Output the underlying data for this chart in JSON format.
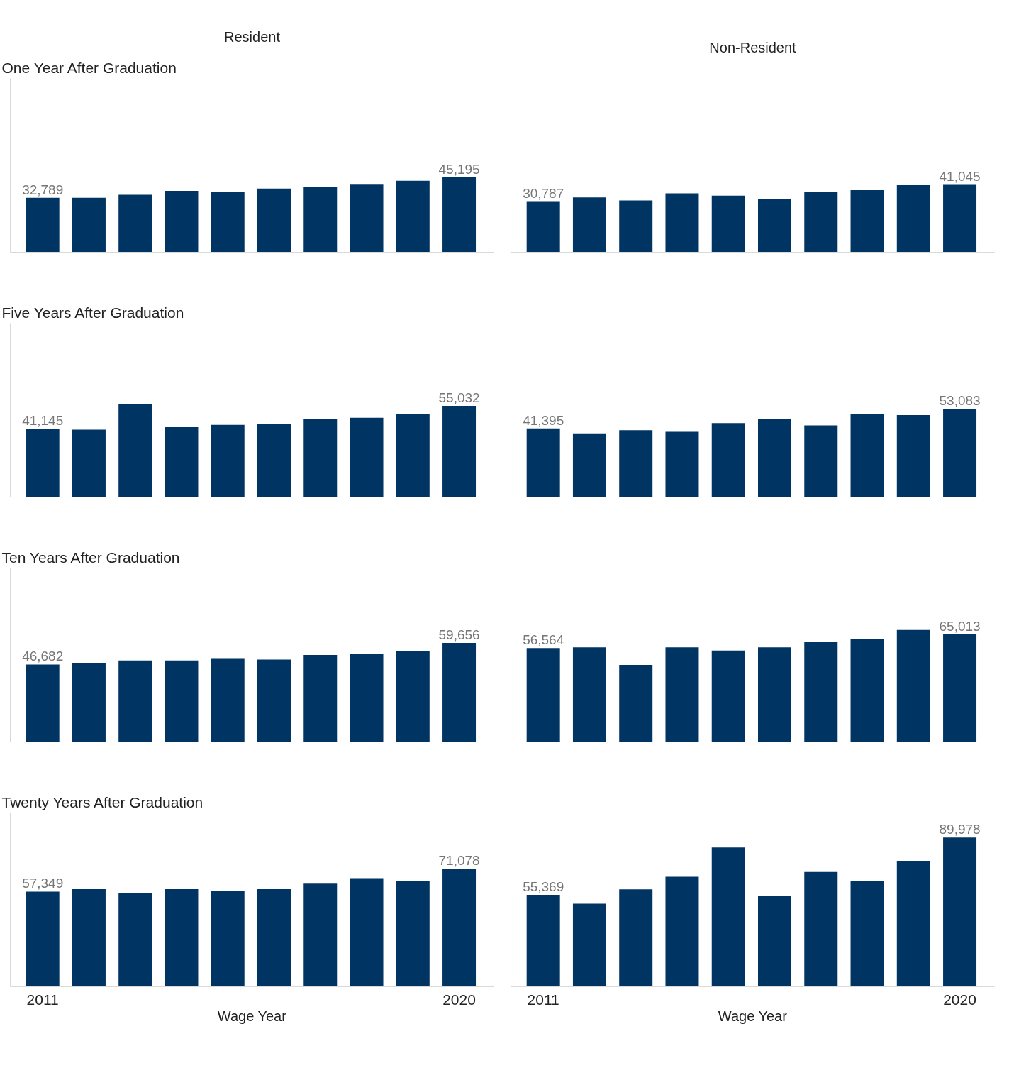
{
  "chart_data": [
    {
      "type": "bar",
      "title": "Resident",
      "subtitle": "One Year After Graduation",
      "categories": [
        null,
        null,
        null,
        null,
        null,
        null,
        null,
        null,
        null,
        null
      ],
      "values": [
        32789,
        32800,
        34700,
        37000,
        36500,
        38400,
        39400,
        41200,
        43100,
        45195
      ],
      "value_labels": [
        "32,789",
        null,
        null,
        null,
        null,
        null,
        null,
        null,
        null,
        "45,195"
      ],
      "color": "#003462"
    },
    {
      "type": "bar",
      "title": "Non-Resident",
      "categories": [
        null,
        null,
        null,
        null,
        null,
        null,
        null,
        null,
        null,
        null
      ],
      "values": [
        30787,
        33100,
        31200,
        35500,
        34100,
        32200,
        36400,
        37400,
        40700,
        41045
      ],
      "value_labels": [
        "30,787",
        null,
        null,
        null,
        null,
        null,
        null,
        null,
        null,
        "41,045"
      ],
      "color": "#003462"
    },
    {
      "type": "bar",
      "subtitle": "Five Years After Graduation",
      "categories": [
        null,
        null,
        null,
        null,
        null,
        null,
        null,
        null,
        null,
        null
      ],
      "values": [
        41145,
        40600,
        56000,
        42100,
        43500,
        44000,
        47300,
        47800,
        50200,
        55032
      ],
      "value_labels": [
        "41,145",
        null,
        null,
        null,
        null,
        null,
        null,
        null,
        null,
        "55,032"
      ],
      "color": "#003462"
    },
    {
      "type": "bar",
      "categories": [
        null,
        null,
        null,
        null,
        null,
        null,
        null,
        null,
        null,
        null
      ],
      "values": [
        41395,
        38400,
        40300,
        39400,
        44600,
        47000,
        43200,
        49900,
        49400,
        53083
      ],
      "value_labels": [
        "41,395",
        null,
        null,
        null,
        null,
        null,
        null,
        null,
        null,
        "53,083"
      ],
      "color": "#003462"
    },
    {
      "type": "bar",
      "subtitle": "Ten Years After Graduation",
      "categories": [
        null,
        null,
        null,
        null,
        null,
        null,
        null,
        null,
        null,
        null
      ],
      "values": [
        46682,
        47700,
        49100,
        49100,
        50500,
        49600,
        52400,
        52900,
        54800,
        59656
      ],
      "value_labels": [
        "46,682",
        null,
        null,
        null,
        null,
        null,
        null,
        null,
        null,
        "59,656"
      ],
      "color": "#003462"
    },
    {
      "type": "bar",
      "categories": [
        null,
        null,
        null,
        null,
        null,
        null,
        null,
        null,
        null,
        null
      ],
      "values": [
        56564,
        57000,
        46400,
        57000,
        55100,
        57000,
        60300,
        62200,
        67500,
        65013
      ],
      "value_labels": [
        "56,564",
        null,
        null,
        null,
        null,
        null,
        null,
        null,
        null,
        "65,013"
      ],
      "color": "#003462"
    },
    {
      "type": "bar",
      "subtitle": "Twenty Years After Graduation",
      "xlabel": "Wage Year",
      "categories": [
        "2011",
        null,
        null,
        null,
        null,
        null,
        null,
        null,
        null,
        "2020"
      ],
      "values": [
        57349,
        58800,
        56400,
        58800,
        57800,
        58800,
        62100,
        65500,
        63600,
        71078
      ],
      "value_labels": [
        "57,349",
        null,
        null,
        null,
        null,
        null,
        null,
        null,
        null,
        "71,078"
      ],
      "color": "#003462",
      "tick_labels": "x"
    },
    {
      "type": "bar",
      "xlabel": "Wage Year",
      "categories": [
        "2011",
        null,
        null,
        null,
        null,
        null,
        null,
        null,
        null,
        "2020"
      ],
      "values": [
        55369,
        50100,
        58700,
        66300,
        84000,
        54900,
        69200,
        64000,
        75900,
        89978
      ],
      "value_labels": [
        "55,369",
        null,
        null,
        null,
        null,
        null,
        null,
        null,
        null,
        "89,978"
      ],
      "color": "#003462",
      "tick_labels": "x"
    }
  ]
}
